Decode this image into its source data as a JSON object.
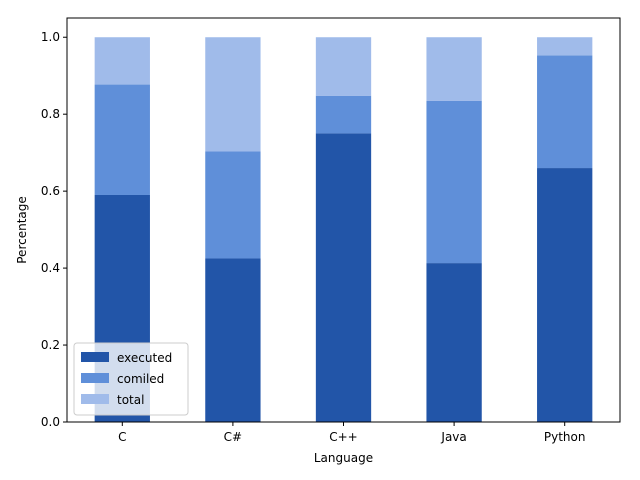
{
  "chart_data": {
    "type": "bar",
    "stacked": true,
    "title": "",
    "xlabel": "Language",
    "ylabel": "Percentage",
    "ylim": [
      0,
      1.05
    ],
    "yticks": [
      0.0,
      0.2,
      0.4,
      0.6,
      0.8,
      1.0
    ],
    "ytick_labels": [
      "0.0",
      "0.2",
      "0.4",
      "0.6",
      "0.8",
      "1.0"
    ],
    "categories": [
      "C",
      "C#",
      "C++",
      "Java",
      "Python"
    ],
    "series": [
      {
        "name": "executed",
        "values": [
          0.59,
          0.425,
          0.75,
          0.413,
          0.66
        ],
        "color": "#2255a8"
      },
      {
        "name": "comiled",
        "values": [
          0.287,
          0.278,
          0.098,
          0.422,
          0.293
        ],
        "color": "#5f8fd9"
      },
      {
        "name": "total",
        "values": [
          0.123,
          0.297,
          0.152,
          0.165,
          0.047
        ],
        "color": "#a0bbea"
      }
    ],
    "legend_position": "lower-left",
    "grid": false
  }
}
